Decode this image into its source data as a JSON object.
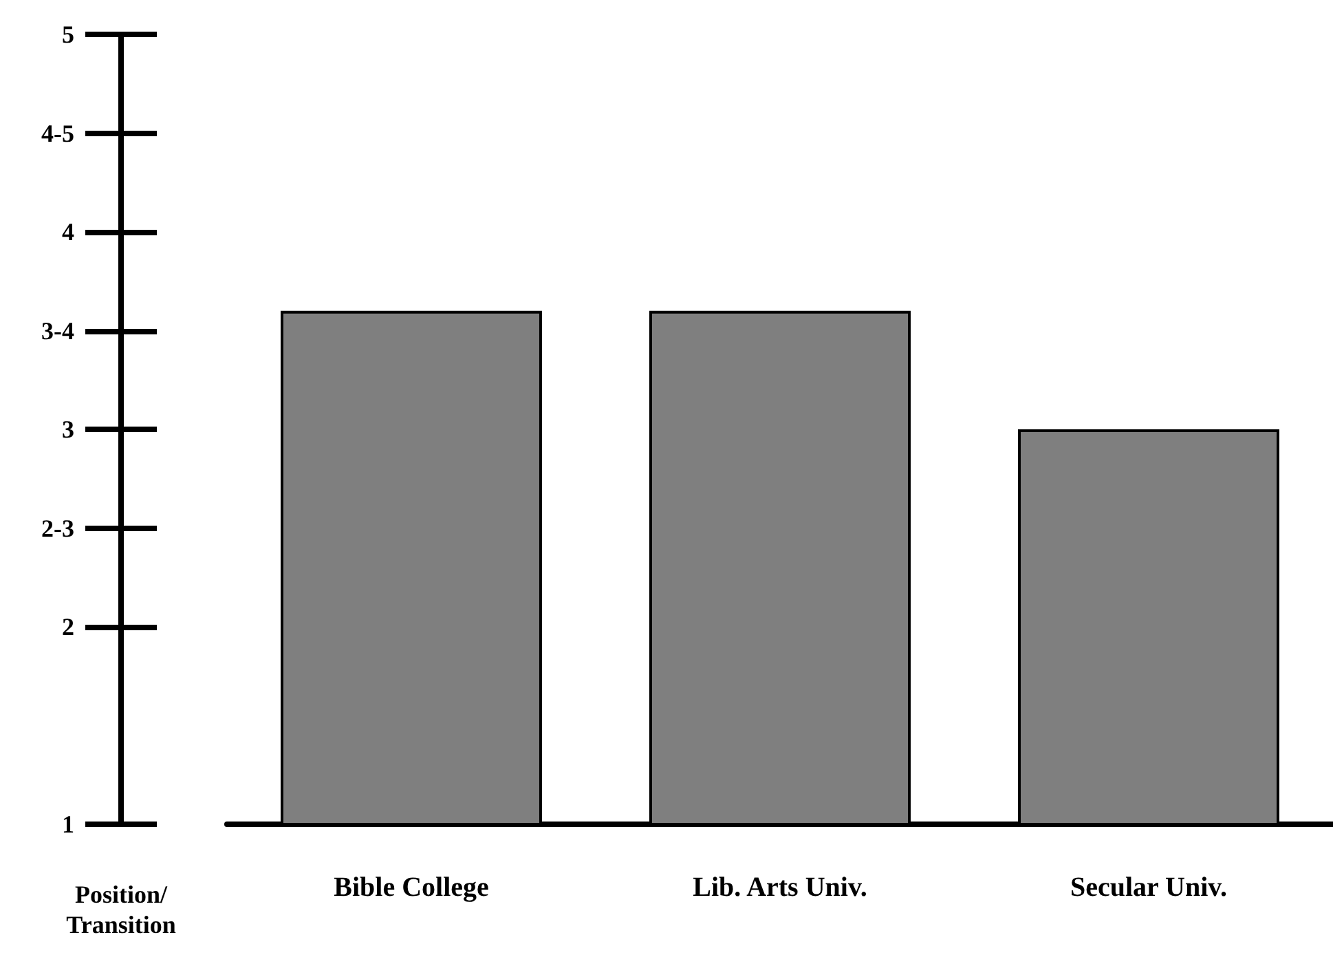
{
  "chart_data": {
    "type": "bar",
    "ylabel": "Position/\nTransition",
    "categories": [
      "Bible College",
      "Lib. Arts Univ.",
      "Secular Univ."
    ],
    "values": [
      3.6,
      3.6,
      3.0
    ],
    "color": "#7f7f7f",
    "ylim": [
      1,
      5
    ],
    "yticks": [
      1,
      2,
      {
        "value": 2.5,
        "label": "2-3"
      },
      3,
      {
        "value": 3.5,
        "label": "3-4"
      },
      4,
      {
        "value": 4.5,
        "label": "4-5"
      },
      5
    ],
    "grid": false
  }
}
